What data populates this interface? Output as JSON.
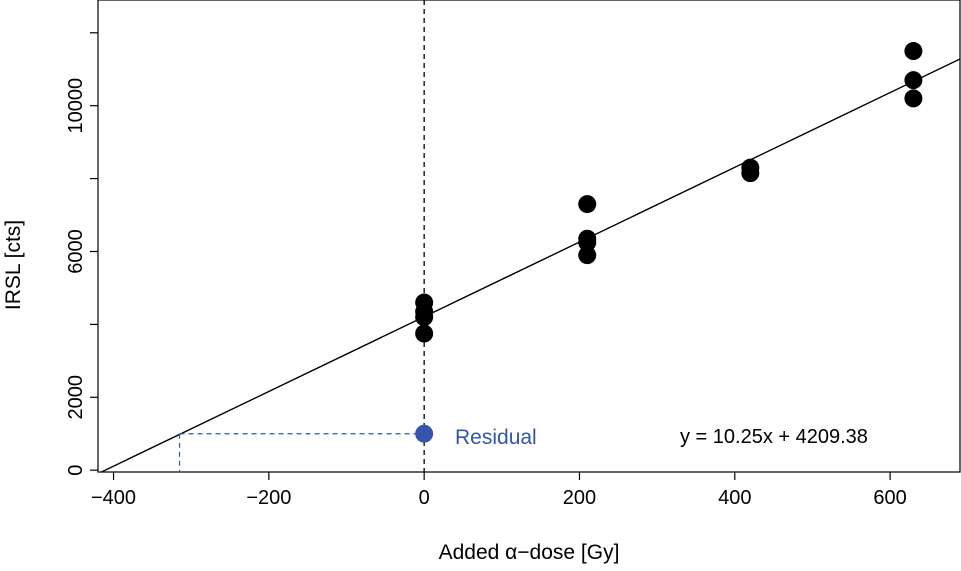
{
  "chart_data": {
    "type": "scatter",
    "title": "",
    "xlabel": "Added α−dose [Gy]",
    "ylabel": "IRSL [cts]",
    "xlim": [
      -420,
      690
    ],
    "ylim": [
      -50,
      12900
    ],
    "x_ticks": [
      -400,
      -200,
      0,
      200,
      400,
      600
    ],
    "x_tick_labels": [
      "−400",
      "−200",
      "0",
      "200",
      "400",
      "600"
    ],
    "y_ticks": [
      0,
      2000,
      4000,
      6000,
      8000,
      10000,
      12000
    ],
    "y_tick_labels": [
      "0",
      "2000",
      "",
      "6000",
      "",
      "10000",
      ""
    ],
    "series": [
      {
        "color": "#000000",
        "points": [
          {
            "x": 0,
            "y": 4600
          },
          {
            "x": 0,
            "y": 4350
          },
          {
            "x": 0,
            "y": 4200
          },
          {
            "x": 0,
            "y": 3750
          },
          {
            "x": 210,
            "y": 7300
          },
          {
            "x": 210,
            "y": 6350
          },
          {
            "x": 210,
            "y": 6250
          },
          {
            "x": 210,
            "y": 5900
          },
          {
            "x": 420,
            "y": 8300
          },
          {
            "x": 420,
            "y": 8150
          },
          {
            "x": 630,
            "y": 11500
          },
          {
            "x": 630,
            "y": 10700
          },
          {
            "x": 630,
            "y": 10200
          }
        ]
      }
    ],
    "fit_line": {
      "slope": 10.25,
      "intercept": 4209.38,
      "label": "y = 10.25x + 4209.38",
      "color": "#000000"
    },
    "vertical_line": {
      "x": 0,
      "style": "dashed",
      "color": "#000000"
    },
    "residual": {
      "x": 0,
      "y": 1000,
      "label": "Residual",
      "color": "#3355aa",
      "projected_x": -315
    },
    "grid": false
  }
}
